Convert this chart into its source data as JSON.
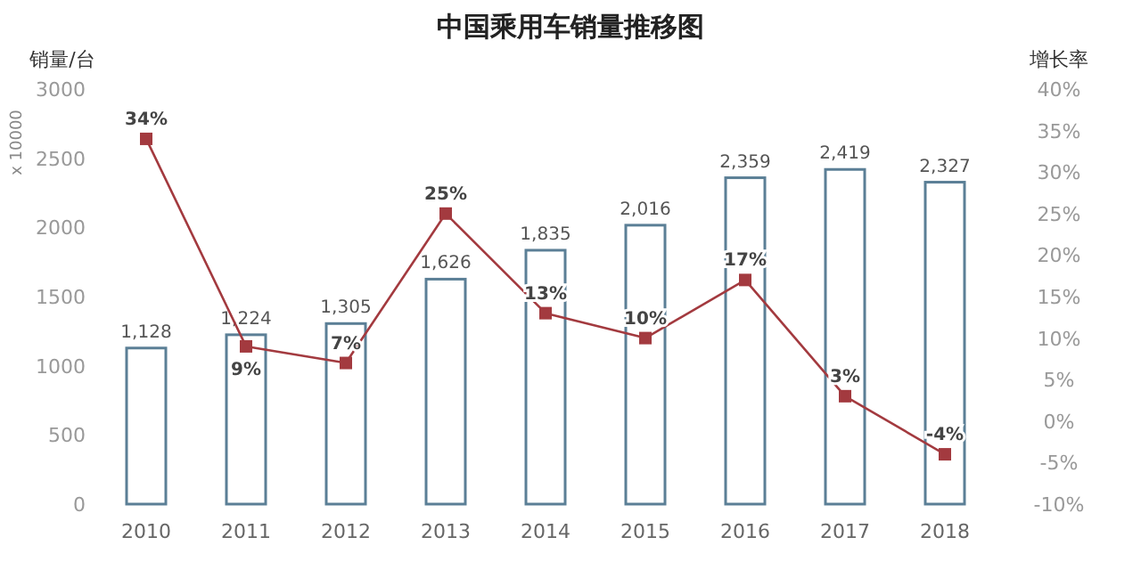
{
  "chart_data": {
    "type": "bar",
    "title": "中国乘用车销量推移图",
    "ylabel": "销量/台",
    "y2label": "增长率",
    "annotations": [
      "x 10000"
    ],
    "categories": [
      "2010",
      "2011",
      "2012",
      "2013",
      "2014",
      "2015",
      "2016",
      "2017",
      "2018"
    ],
    "series": [
      {
        "color": "#5b7f96",
        "values": [
          1128,
          1224,
          1305,
          1626,
          1835,
          2016,
          2359,
          2419,
          2327
        ],
        "value_labels": [
          "1,128",
          "1,224",
          "1,305",
          "1,626",
          "1,835",
          "2,016",
          "2,359",
          "2,419",
          "2,327"
        ]
      },
      {
        "type": "line",
        "axis": "y2",
        "color": "#a33a3f",
        "marker": "square",
        "values": [
          34,
          9,
          7,
          25,
          13,
          10,
          17,
          3,
          -4
        ],
        "value_labels": [
          "34%",
          "9%",
          "7%",
          "25%",
          "13%",
          "10%",
          "17%",
          "3%",
          "-4%"
        ]
      }
    ],
    "ylim": [
      0,
      3000
    ],
    "yticks": [
      0,
      500,
      1000,
      1500,
      2000,
      2500,
      3000
    ],
    "y2lim": [
      -10,
      40
    ],
    "y2ticks": [
      {
        "value": -10,
        "label": "-10%"
      },
      {
        "value": -5,
        "label": "-5%"
      },
      {
        "value": 0,
        "label": "0%"
      },
      {
        "value": 5,
        "label": "5%"
      },
      {
        "value": 10,
        "label": "10%"
      },
      {
        "value": 15,
        "label": "15%"
      },
      {
        "value": 20,
        "label": "20%"
      },
      {
        "value": 25,
        "label": "25%"
      },
      {
        "value": 30,
        "label": "30%"
      },
      {
        "value": 35,
        "label": "35%"
      },
      {
        "value": 40,
        "label": "40%"
      }
    ],
    "grid": false
  }
}
